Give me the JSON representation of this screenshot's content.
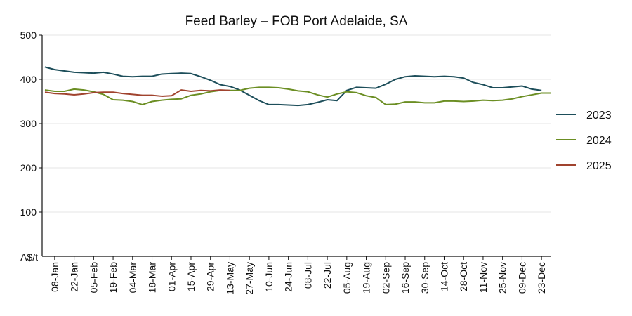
{
  "chart_data": {
    "type": "line",
    "title": "Feed Barley – FOB Port Adelaide, SA",
    "ylabel": "A$/t",
    "xlabel": "",
    "ylim": [
      0,
      500
    ],
    "yticks": [
      100,
      200,
      300,
      400,
      500
    ],
    "grid": "horizontal",
    "legend_position": "right",
    "x_tick_labels": [
      "08-Jan",
      "22-Jan",
      "05-Feb",
      "19-Feb",
      "04-Mar",
      "18-Mar",
      "01-Apr",
      "15-Apr",
      "29-Apr",
      "13-May",
      "27-May",
      "10-Jun",
      "24-Jun",
      "08-Jul",
      "22-Jul",
      "05-Aug",
      "19-Aug",
      "02-Sep",
      "16-Sep",
      "30-Sep",
      "14-Oct",
      "28-Oct",
      "11-Nov",
      "25-Nov",
      "09-Dec",
      "23-Dec"
    ],
    "x": [
      "01-Jan",
      "08-Jan",
      "15-Jan",
      "22-Jan",
      "29-Jan",
      "05-Feb",
      "12-Feb",
      "19-Feb",
      "26-Feb",
      "04-Mar",
      "11-Mar",
      "18-Mar",
      "25-Mar",
      "01-Apr",
      "08-Apr",
      "15-Apr",
      "22-Apr",
      "29-Apr",
      "06-May",
      "13-May",
      "20-May",
      "27-May",
      "03-Jun",
      "10-Jun",
      "17-Jun",
      "24-Jun",
      "01-Jul",
      "08-Jul",
      "15-Jul",
      "22-Jul",
      "29-Jul",
      "05-Aug",
      "12-Aug",
      "19-Aug",
      "26-Aug",
      "02-Sep",
      "09-Sep",
      "16-Sep",
      "23-Sep",
      "30-Sep",
      "07-Oct",
      "14-Oct",
      "21-Oct",
      "28-Oct",
      "04-Nov",
      "11-Nov",
      "18-Nov",
      "25-Nov",
      "02-Dec",
      "09-Dec",
      "16-Dec",
      "23-Dec",
      "30-Dec"
    ],
    "series": [
      {
        "name": "2023",
        "color": "#1d4e5a",
        "values": [
          428,
          422,
          419,
          416,
          415,
          414,
          416,
          412,
          407,
          406,
          407,
          407,
          412,
          413,
          414,
          413,
          406,
          398,
          388,
          384,
          376,
          364,
          352,
          343,
          343,
          342,
          341,
          343,
          348,
          354,
          352,
          375,
          382,
          381,
          380,
          389,
          400,
          406,
          408,
          407,
          406,
          407,
          406,
          403,
          393,
          388,
          381,
          381,
          383,
          385,
          378,
          375,
          null
        ]
      },
      {
        "name": "2024",
        "color": "#6b8e23",
        "values": [
          376,
          373,
          373,
          378,
          376,
          372,
          366,
          354,
          353,
          350,
          343,
          350,
          353,
          355,
          356,
          364,
          367,
          372,
          375,
          375,
          375,
          380,
          382,
          382,
          381,
          378,
          374,
          372,
          365,
          360,
          367,
          372,
          370,
          363,
          359,
          343,
          344,
          349,
          349,
          347,
          347,
          351,
          351,
          350,
          351,
          353,
          352,
          353,
          356,
          361,
          365,
          369,
          369
        ]
      },
      {
        "name": "2025",
        "color": "#a0432e",
        "values": [
          371,
          368,
          367,
          365,
          367,
          370,
          371,
          371,
          368,
          366,
          364,
          364,
          362,
          363,
          376,
          373,
          375,
          374,
          376,
          375,
          null,
          null,
          null,
          null,
          null,
          null,
          null,
          null,
          null,
          null,
          null,
          null,
          null,
          null,
          null,
          null,
          null,
          null,
          null,
          null,
          null,
          null,
          null,
          null,
          null,
          null,
          null,
          null,
          null,
          null,
          null,
          null,
          null
        ]
      }
    ]
  }
}
